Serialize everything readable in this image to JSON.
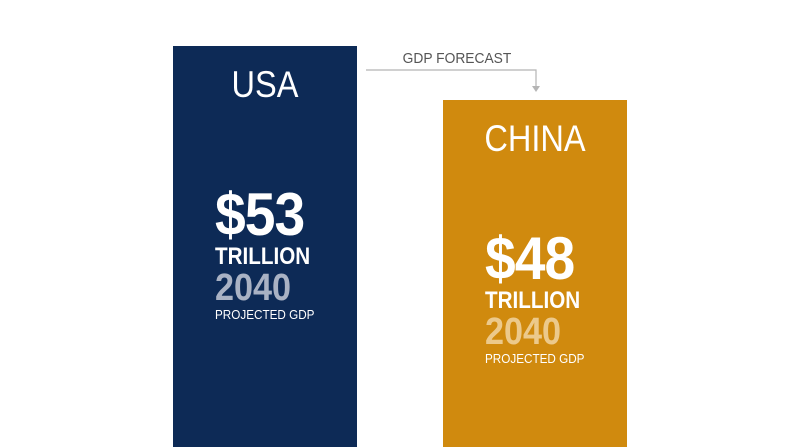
{
  "chart_data": {
    "type": "bar",
    "title": "GDP FORECAST",
    "categories": [
      "USA",
      "CHINA"
    ],
    "values": [
      53,
      48
    ],
    "unit": "TRILLION",
    "year": "2040",
    "caption": "PROJECTED GDP",
    "value_labels": [
      "$53",
      "$48"
    ],
    "colors": [
      "#0d2a56",
      "#d08a0e"
    ],
    "year_colors": [
      "#a9b2c4",
      "#ecc98b"
    ]
  }
}
